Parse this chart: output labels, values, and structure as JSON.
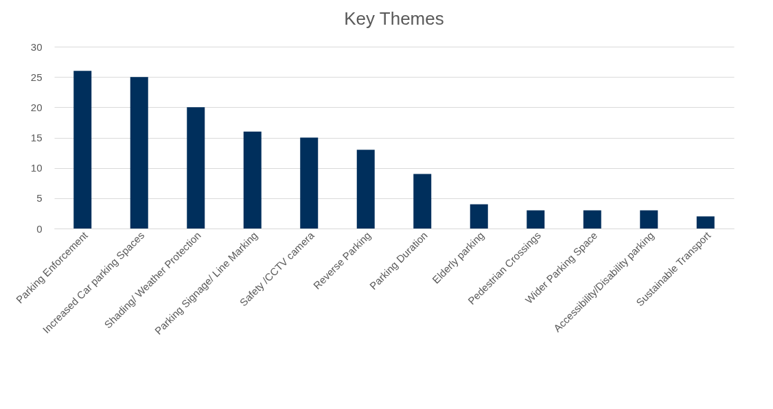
{
  "chart_data": {
    "type": "bar",
    "title": "Key Themes",
    "categories": [
      "Parking Enforcement",
      "Increased Car parking Spaces",
      "Shading/ Weather Protection",
      "Parking Signage/ Line Marking",
      "Safety /CCTV camera",
      "Reverse Parking",
      "Parking Duration",
      "Elderly parking",
      "Pedestrian Crossings",
      "Wider Parking Space",
      "Accessibility/Disability parking",
      "Sustainable Transport"
    ],
    "values": [
      26,
      25,
      20,
      16,
      15,
      13,
      9,
      4,
      3,
      3,
      3,
      2
    ],
    "color": "#002f5c",
    "ylim": [
      0,
      30
    ],
    "yticks": [
      0,
      5,
      10,
      15,
      20,
      25,
      30
    ],
    "grid": "y"
  }
}
